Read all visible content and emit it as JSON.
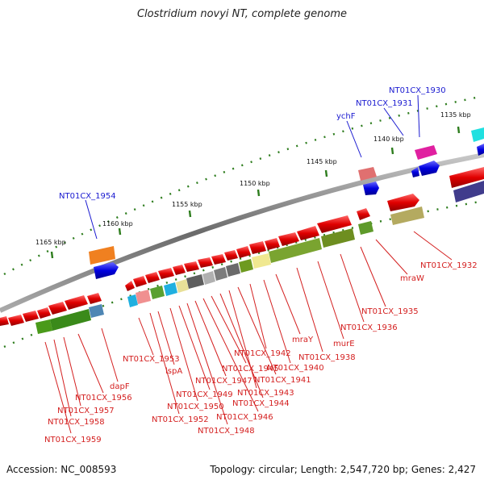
{
  "title": "Clostridium novyi NT, complete genome",
  "footer": {
    "accession": "Accession: NC_008593",
    "summary": "Topology: circular; Length: 2,547,720 bp; Genes: 2,427"
  },
  "colors": {
    "backbone": "#7a7a7a",
    "gene_red": "#e01010",
    "gene_blue": "#1010e0",
    "label_red": "#d42020",
    "label_blue": "#1a1ad0",
    "tick_green": "#2e7d1e"
  },
  "ticks": [
    "1135 kbp",
    "1140 kbp",
    "1145 kbp",
    "1150 kbp",
    "1155 kbp",
    "1160 kbp",
    "1165 kbp"
  ],
  "labels_top": [
    "NT01CX_1930",
    "NT01CX_1931",
    "ychF",
    "NT01CX_1954"
  ],
  "labels_bottom": [
    "NT01CX_1932",
    "mraW",
    "NT01CX_1935",
    "NT01CX_1936",
    "murE",
    "NT01CX_1938",
    "mraY",
    "NT01CX_1940",
    "NT01CX_1942",
    "NT01CX_1941",
    "NT01CX_1943",
    "NT01CX_1944",
    "NT01CX_1945",
    "NT01CX_1946",
    "NT01CX_1947",
    "NT01CX_1948",
    "NT01CX_1949",
    "NT01CX_1950",
    "lspA",
    "NT01CX_1952",
    "NT01CX_1953",
    "dapF",
    "NT01CX_1956",
    "NT01CX_1957",
    "NT01CX_1958",
    "NT01CX_1959"
  ]
}
